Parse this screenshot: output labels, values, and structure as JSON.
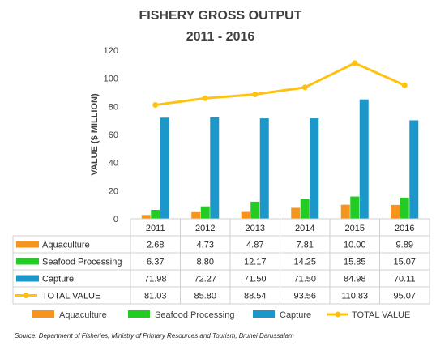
{
  "chart_data": {
    "type": "bar",
    "title": "FISHERY GROSS OUTPUT",
    "subtitle": "2011 - 2016",
    "ylabel": "VALUE ($ MILLION)",
    "ylim": [
      0,
      120
    ],
    "yticks": [
      0,
      20,
      40,
      60,
      80,
      100,
      120
    ],
    "categories": [
      "2011",
      "2012",
      "2013",
      "2014",
      "2015",
      "2016"
    ],
    "series": [
      {
        "name": "Aquaculture",
        "kind": "bar",
        "color": "#f7941d",
        "values": [
          2.68,
          4.73,
          4.87,
          7.81,
          10.0,
          9.89
        ],
        "labels": [
          "2.68",
          "4.73",
          "4.87",
          "7.81",
          "10.00",
          "9.89"
        ]
      },
      {
        "name": "Seafood Processing",
        "kind": "bar",
        "color": "#22cc22",
        "values": [
          6.37,
          8.8,
          12.17,
          14.25,
          15.85,
          15.07
        ],
        "labels": [
          "6.37",
          "8.80",
          "12.17",
          "14.25",
          "15.85",
          "15.07"
        ]
      },
      {
        "name": "Capture",
        "kind": "bar",
        "color": "#1b98c9",
        "values": [
          71.98,
          72.27,
          71.5,
          71.5,
          84.98,
          70.11
        ],
        "labels": [
          "71.98",
          "72.27",
          "71.50",
          "71.50",
          "84.98",
          "70.11"
        ]
      },
      {
        "name": "TOTAL VALUE",
        "kind": "line",
        "color": "#ffc20e",
        "values": [
          81.03,
          85.8,
          88.54,
          93.56,
          110.83,
          95.07
        ],
        "labels": [
          "81.03",
          "85.80",
          "88.54",
          "93.56",
          "110.83",
          "95.07"
        ]
      }
    ],
    "grid": false,
    "legend_placement": "bottom",
    "data_table": true,
    "source": "Source: Department of Fisheries, Ministry of Primary Resources and Tourism, Brunei Darussalam"
  }
}
